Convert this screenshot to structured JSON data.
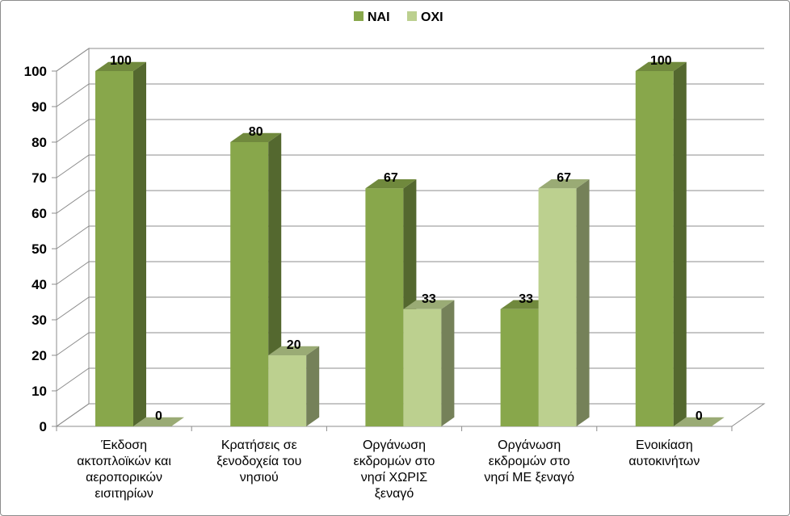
{
  "chart_data": {
    "type": "bar",
    "categories": [
      [
        "Έκδοση",
        "ακτοπλοϊκών και",
        "αεροπορικών",
        "εισιτηρίων"
      ],
      [
        "Κρατήσεις σε",
        "ξενοδοχεία του",
        "νησιού"
      ],
      [
        "Οργάνωση",
        "εκδρομών στο",
        "νησί ΧΩΡΙΣ",
        "ξεναγό"
      ],
      [
        "Οργάνωση",
        "εκδρομών στο",
        "νησί ΜΕ ξεναγό"
      ],
      [
        "Ενοικίαση",
        "αυτοκινήτων"
      ]
    ],
    "series": [
      {
        "name": "ΝΑΙ",
        "values": [
          100,
          80,
          67,
          33,
          100
        ],
        "color": "#88a74b"
      },
      {
        "name": "ΟΧΙ",
        "values": [
          0,
          20,
          33,
          67,
          0
        ],
        "color": "#bcd08f"
      }
    ],
    "ylim": [
      0,
      100
    ],
    "yticks": [
      0,
      10,
      20,
      30,
      40,
      50,
      60,
      70,
      80,
      90,
      100
    ],
    "grid": true,
    "legend": "top-center",
    "title": "",
    "xlabel": "",
    "ylabel": ""
  }
}
